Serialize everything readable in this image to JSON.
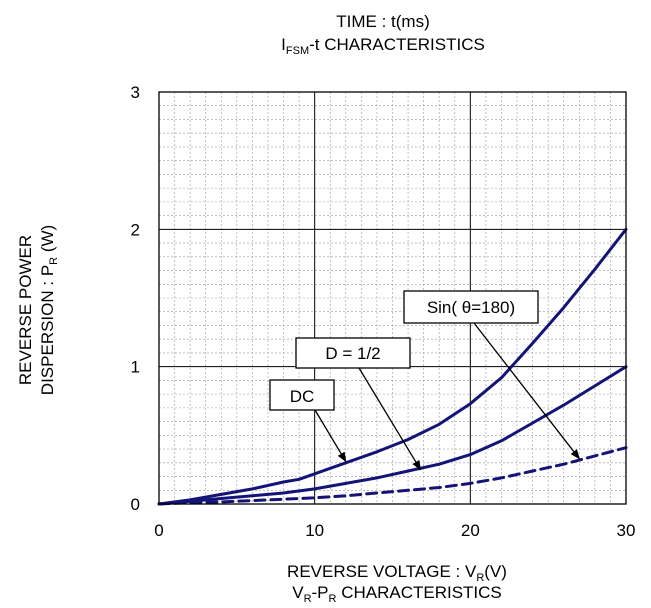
{
  "top_caption": {
    "line1": "TIME : t(ms)",
    "line2_main": "I",
    "line2_sub": "FSM",
    "line2_rest": "-t CHARACTERISTICS"
  },
  "bottom_caption": {
    "xlabel_main": "REVERSE VOLTAGE : V",
    "xlabel_sub": "R",
    "xlabel_rest": "(V)",
    "line2_a": "V",
    "line2_a_sub": "R",
    "line2_b": "-P",
    "line2_b_sub": "R",
    "line2_c": " CHARACTERISTICS"
  },
  "ylabel": {
    "line1": "REVERSE POWER",
    "line2_main": "DISPERSION : P",
    "line2_sub": "R",
    "line2_rest": " (W)"
  },
  "colors": {
    "curve": "#141478",
    "grid_major": "#000000",
    "grid_minor": "#9a9a9a"
  },
  "chart_data": {
    "type": "line",
    "xlim": [
      0,
      30
    ],
    "ylim": [
      0,
      3
    ],
    "xticks": [
      "0",
      "10",
      "20",
      "30"
    ],
    "yticks": [
      "0",
      "1",
      "2",
      "3"
    ],
    "grid": true,
    "series": [
      {
        "name": "Sin( θ=180)",
        "style": "solid",
        "x": [
          0,
          2,
          4,
          6,
          8,
          9,
          10,
          12,
          14,
          16,
          18,
          20,
          22,
          24,
          26,
          28,
          30
        ],
        "y": [
          0,
          0.03,
          0.07,
          0.11,
          0.16,
          0.18,
          0.22,
          0.3,
          0.38,
          0.47,
          0.58,
          0.73,
          0.92,
          1.17,
          1.43,
          1.71,
          2.0
        ]
      },
      {
        "name": "D = 1/2",
        "style": "solid",
        "x": [
          0,
          2,
          4,
          6,
          8,
          10,
          12,
          14,
          16,
          18,
          20,
          22,
          24,
          26,
          28,
          30
        ],
        "y": [
          0,
          0.02,
          0.04,
          0.06,
          0.08,
          0.11,
          0.15,
          0.19,
          0.24,
          0.29,
          0.36,
          0.46,
          0.59,
          0.72,
          0.86,
          1.0
        ]
      },
      {
        "name": "DC",
        "style": "dashed",
        "x": [
          0,
          2,
          4,
          6,
          8,
          10,
          12,
          14,
          16,
          18,
          20,
          22,
          24,
          26,
          28,
          30
        ],
        "y": [
          0,
          0.01,
          0.015,
          0.025,
          0.035,
          0.045,
          0.06,
          0.08,
          0.1,
          0.12,
          0.15,
          0.19,
          0.24,
          0.29,
          0.35,
          0.41
        ]
      }
    ],
    "annotations": [
      {
        "text": "Sin( θ=180)",
        "target": [
          27,
          0.33
        ]
      },
      {
        "text": "D = 1/2",
        "target": [
          16.8,
          0.25
        ]
      },
      {
        "text": "DC",
        "target": [
          12,
          0.31
        ]
      }
    ]
  }
}
